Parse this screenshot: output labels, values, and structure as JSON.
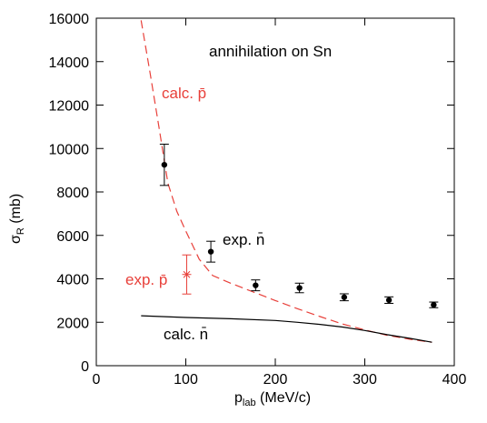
{
  "chart_data": {
    "type": "scatter",
    "title": "annihilation on Sn",
    "xlabel": {
      "main": "p",
      "sub": "lab",
      "rest": " (MeV/c)"
    },
    "ylabel": {
      "main": "σ",
      "sub": "R",
      "rest": " (mb)"
    },
    "xlim": [
      0,
      400
    ],
    "ylim": [
      0,
      16000
    ],
    "xticks": [
      "0",
      "100",
      "200",
      "300",
      "400"
    ],
    "yticks": [
      "0",
      "2000",
      "4000",
      "6000",
      "8000",
      "10000",
      "12000",
      "14000",
      "16000"
    ],
    "grid": false,
    "colors": {
      "red": "#e8403a",
      "black": "#000000",
      "frame": "#000000"
    },
    "series": [
      {
        "name": "calc. p̄",
        "style": "dashed-line",
        "color": "#e8403a",
        "points": [
          [
            50,
            15900
          ],
          [
            60,
            13500
          ],
          [
            70,
            11000
          ],
          [
            80,
            8400
          ],
          [
            90,
            7100
          ],
          [
            100,
            6200
          ],
          [
            115,
            4900
          ],
          [
            130,
            4150
          ],
          [
            150,
            3800
          ],
          [
            175,
            3400
          ],
          [
            200,
            3000
          ],
          [
            225,
            2620
          ],
          [
            250,
            2260
          ],
          [
            275,
            1920
          ],
          [
            300,
            1650
          ],
          [
            325,
            1400
          ],
          [
            350,
            1220
          ],
          [
            375,
            1080
          ]
        ]
      },
      {
        "name": "calc. n̄",
        "style": "solid-line",
        "color": "#000000",
        "points": [
          [
            50,
            2300
          ],
          [
            100,
            2220
          ],
          [
            150,
            2160
          ],
          [
            200,
            2080
          ],
          [
            225,
            2000
          ],
          [
            250,
            1900
          ],
          [
            275,
            1780
          ],
          [
            300,
            1620
          ],
          [
            325,
            1430
          ],
          [
            350,
            1260
          ],
          [
            375,
            1080
          ]
        ]
      },
      {
        "name": "exp. n̄",
        "style": "points-errorbars",
        "color": "#000000",
        "points": [
          {
            "x": 76,
            "y": 9250,
            "err": 950
          },
          {
            "x": 128,
            "y": 5250,
            "err": 480
          },
          {
            "x": 178,
            "y": 3700,
            "err": 250
          },
          {
            "x": 227,
            "y": 3580,
            "err": 220
          },
          {
            "x": 277,
            "y": 3150,
            "err": 160
          },
          {
            "x": 327,
            "y": 3020,
            "err": 150
          },
          {
            "x": 377,
            "y": 2800,
            "err": 130
          }
        ]
      },
      {
        "name": "exp. p̄",
        "style": "star-errorbar",
        "color": "#e8403a",
        "points": [
          {
            "x": 101,
            "y": 4200,
            "err": 900
          }
        ]
      }
    ],
    "annotations": {
      "calc_pbar": "calc. p̄",
      "exp_nbar": "exp. n̄",
      "exp_pbar": "exp. p̄",
      "calc_nbar": "calc. n̄"
    }
  }
}
